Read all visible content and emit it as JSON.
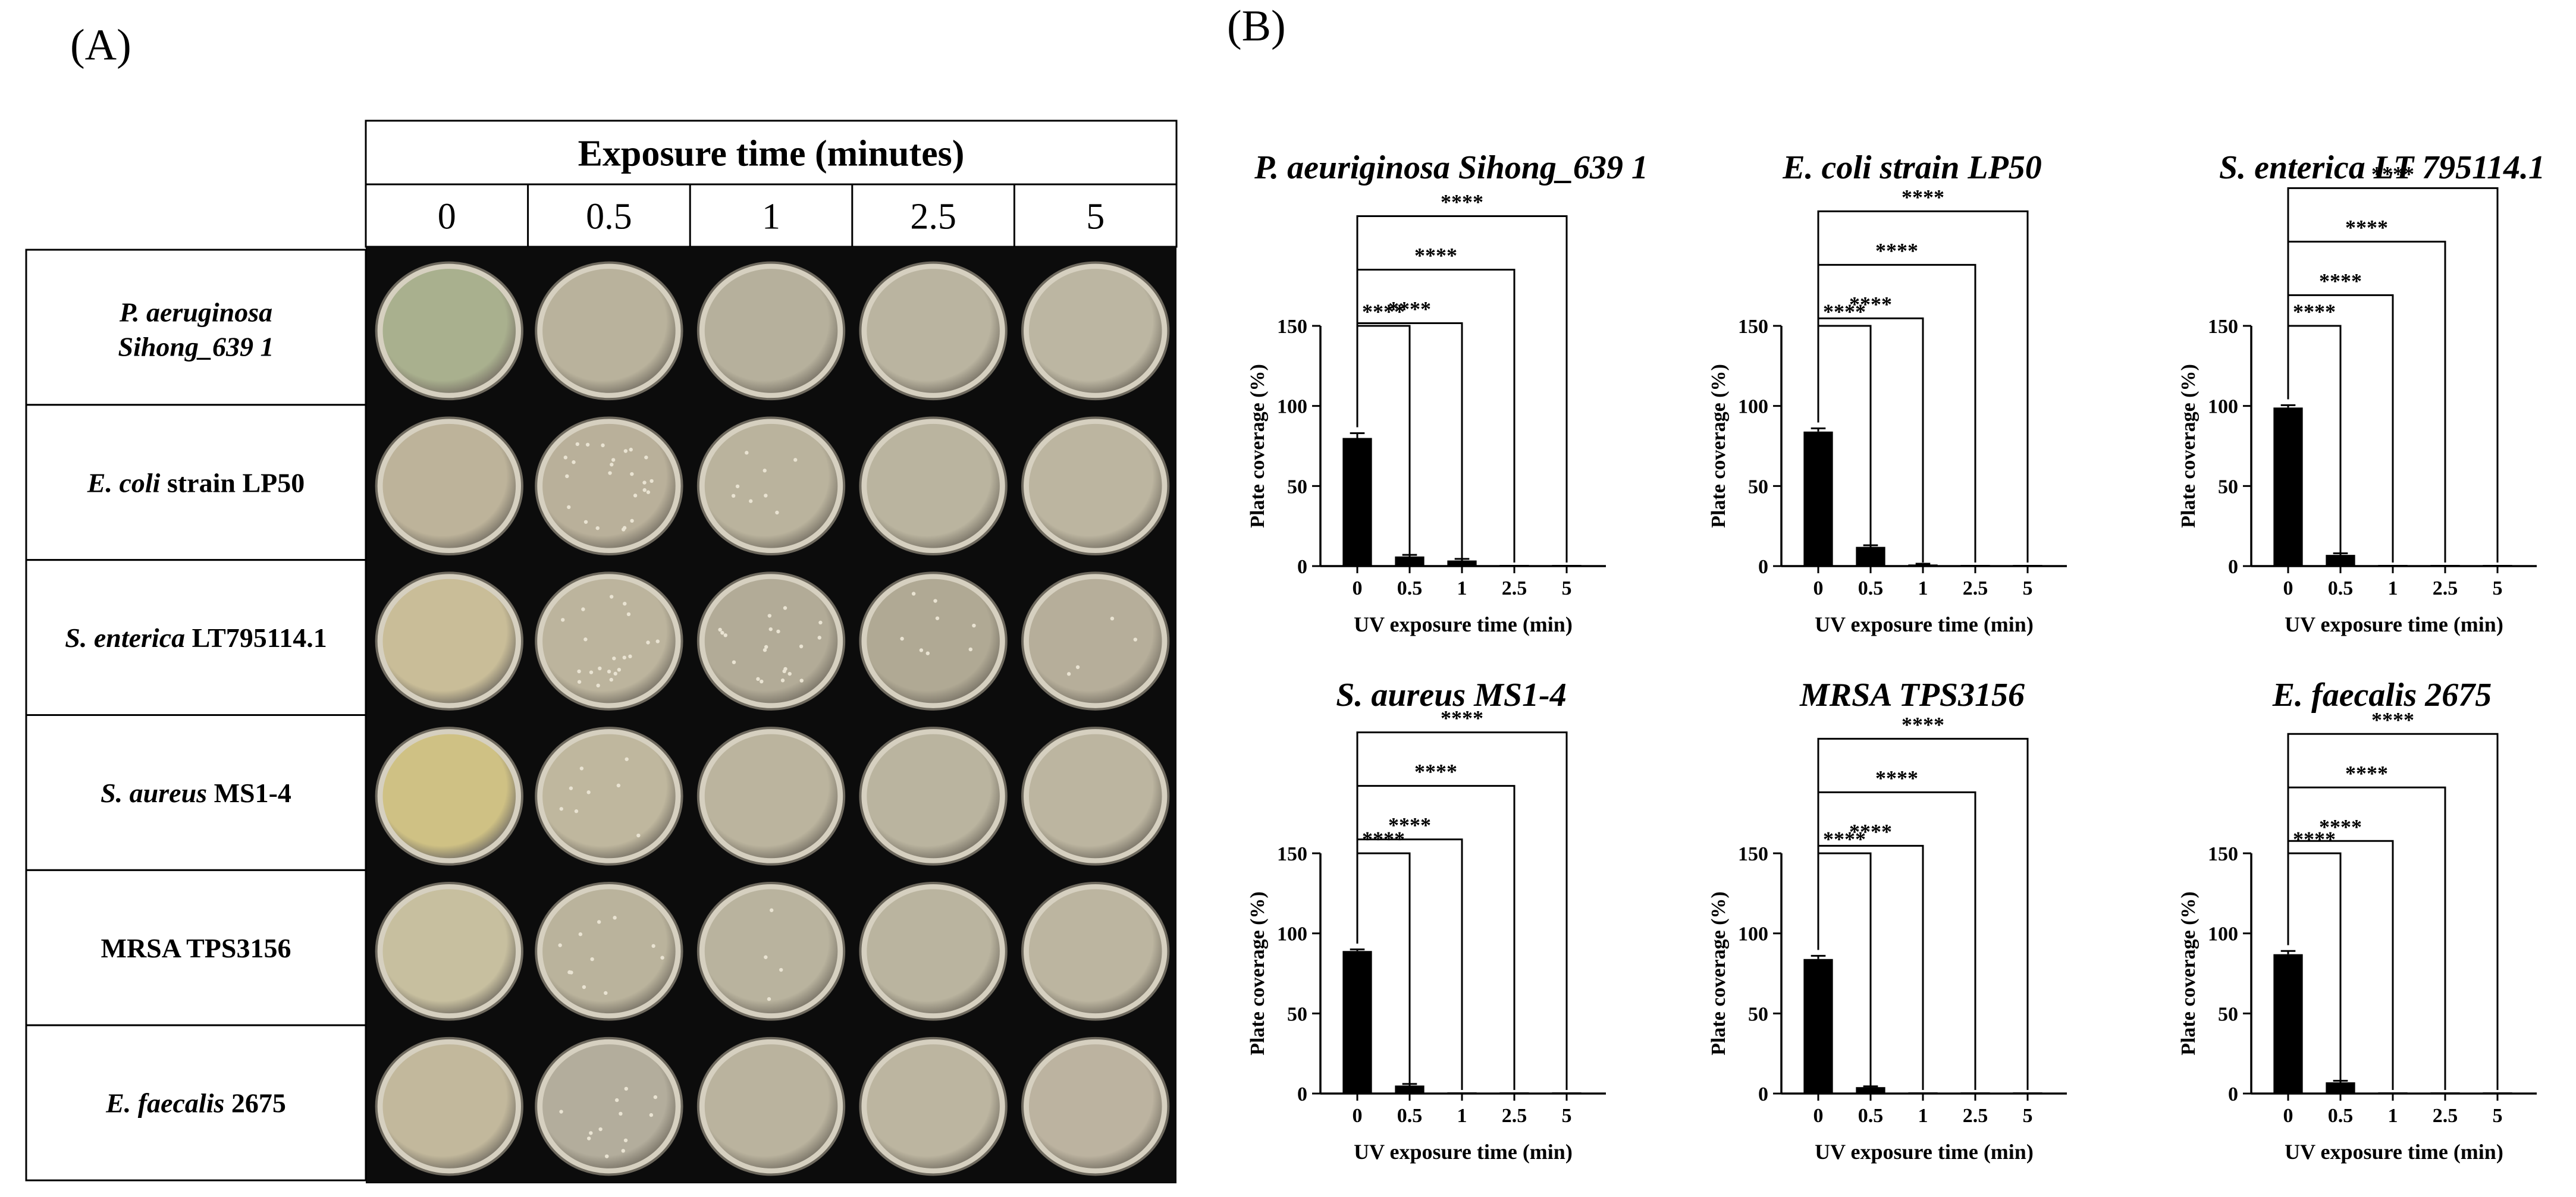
{
  "panels": {
    "a_label": "(A)",
    "b_label": "(B)"
  },
  "panel_a": {
    "header": "Exposure time (minutes)",
    "times": [
      "0",
      "0.5",
      "1",
      "2.5",
      "5"
    ],
    "rows": [
      {
        "name_italic": "P. aeruginosa",
        "name_rest": "",
        "name_line2": "Sihong_639 1",
        "plate_colors": [
          "#a9b08e",
          "#b9b29c",
          "#b6b09c",
          "#bab4a0",
          "#bcb6a2"
        ],
        "colonies": [
          0,
          0,
          0,
          0,
          0
        ]
      },
      {
        "name_italic": "E. coli",
        "name_rest": " strain LP50",
        "name_line2": "",
        "plate_colors": [
          "#bdb39a",
          "#b9b09a",
          "#bab39d",
          "#bab49f",
          "#bcb5a0"
        ],
        "colonies": [
          0,
          0.6,
          0.2,
          0,
          0
        ]
      },
      {
        "name_italic": "S. enterica",
        "name_rest": " LT795114.1",
        "name_line2": "",
        "plate_colors": [
          "#c9bd98",
          "#bcb49d",
          "#b2ab97",
          "#b0a994",
          "#b6ae9a"
        ],
        "colonies": [
          0,
          0.5,
          0.5,
          0.2,
          0.1
        ]
      },
      {
        "name_italic": "S. aureus",
        "name_rest": " MS1-4",
        "name_line2": "",
        "plate_colors": [
          "#cfc184",
          "#bfb79e",
          "#bbb49e",
          "#bab49f",
          "#bcb5a0"
        ],
        "colonies": [
          0,
          0.2,
          0,
          0,
          0
        ]
      },
      {
        "name_italic": "",
        "name_rest": "MRSA TPS3156",
        "name_line2": "",
        "plate_colors": [
          "#c7bf9f",
          "#bab39c",
          "#b9b39e",
          "#bab49f",
          "#bcb5a0"
        ],
        "colonies": [
          0,
          0.3,
          0.1,
          0,
          0
        ]
      },
      {
        "name_italic": "E. faecalis",
        "name_rest": " 2675",
        "name_line2": "",
        "plate_colors": [
          "#c2b89c",
          "#b3ad9c",
          "#bab39e",
          "#bcb5a0",
          "#bcb3a0"
        ],
        "colonies": [
          0,
          0.3,
          0,
          0,
          0
        ]
      }
    ]
  },
  "chart_data": [
    {
      "type": "bar",
      "title": "P. aeuriginosa Sihong_639 1",
      "xlabel": "UV exposure time (min)",
      "ylabel": "Plate coverage (%)",
      "categories": [
        "0",
        "0.5",
        "1",
        "2.5",
        "5"
      ],
      "values": [
        80,
        6,
        3.5,
        0,
        0
      ],
      "errors": [
        3,
        1,
        1,
        0,
        0
      ],
      "ylim": [
        0,
        150
      ],
      "yticks": [
        0,
        50,
        100,
        150
      ],
      "significance": [
        {
          "from": "0",
          "to": "0.5",
          "label": "****"
        },
        {
          "from": "0",
          "to": "1",
          "label": "****"
        },
        {
          "from": "0",
          "to": "2.5",
          "label": "****"
        },
        {
          "from": "0",
          "to": "5",
          "label": "****"
        }
      ]
    },
    {
      "type": "bar",
      "title": "E. coli strain LP50",
      "xlabel": "UV exposure time (min)",
      "ylabel": "Plate coverage (%)",
      "categories": [
        "0",
        "0.5",
        "1",
        "2.5",
        "5"
      ],
      "values": [
        84,
        12,
        1,
        0,
        0
      ],
      "errors": [
        2,
        1,
        0.5,
        0,
        0
      ],
      "ylim": [
        0,
        150
      ],
      "yticks": [
        0,
        50,
        100,
        150
      ],
      "significance": [
        {
          "from": "0",
          "to": "0.5",
          "label": "****"
        },
        {
          "from": "0",
          "to": "1",
          "label": "****"
        },
        {
          "from": "0",
          "to": "2.5",
          "label": "****"
        },
        {
          "from": "0",
          "to": "5",
          "label": "****"
        }
      ]
    },
    {
      "type": "bar",
      "title": "S. enterica LT 795114.1",
      "xlabel": "UV exposure time (min)",
      "ylabel": "Plate coverage (%)",
      "categories": [
        "0",
        "0.5",
        "1",
        "2.5",
        "5"
      ],
      "values": [
        99,
        7,
        0,
        0,
        0
      ],
      "errors": [
        1.5,
        1,
        0,
        0,
        0
      ],
      "ylim": [
        0,
        150
      ],
      "yticks": [
        0,
        50,
        100,
        150
      ],
      "significance": [
        {
          "from": "0",
          "to": "0.5",
          "label": "****"
        },
        {
          "from": "0",
          "to": "1",
          "label": "****"
        },
        {
          "from": "0",
          "to": "2.5",
          "label": "****"
        },
        {
          "from": "0",
          "to": "5",
          "label": "****"
        }
      ]
    },
    {
      "type": "bar",
      "title": "S. aureus MS1-4",
      "xlabel": "UV exposure time (min)",
      "ylabel": "Plate coverage (%)",
      "categories": [
        "0",
        "0.5",
        "1",
        "2.5",
        "5"
      ],
      "values": [
        89,
        5,
        0,
        0,
        0
      ],
      "errors": [
        1,
        1,
        0,
        0,
        0
      ],
      "ylim": [
        0,
        150
      ],
      "yticks": [
        0,
        50,
        100,
        150
      ],
      "significance": [
        {
          "from": "0",
          "to": "0.5",
          "label": "****"
        },
        {
          "from": "0",
          "to": "1",
          "label": "****"
        },
        {
          "from": "0",
          "to": "2.5",
          "label": "****"
        },
        {
          "from": "0",
          "to": "5",
          "label": "****"
        }
      ]
    },
    {
      "type": "bar",
      "title": "MRSA TPS3156",
      "xlabel": "UV exposure time (min)",
      "ylabel": "Plate coverage (%)",
      "categories": [
        "0",
        "0.5",
        "1",
        "2.5",
        "5"
      ],
      "values": [
        84,
        4,
        0,
        0,
        0
      ],
      "errors": [
        2,
        0.5,
        0,
        0,
        0
      ],
      "ylim": [
        0,
        150
      ],
      "yticks": [
        0,
        50,
        100,
        150
      ],
      "significance": [
        {
          "from": "0",
          "to": "0.5",
          "label": "****"
        },
        {
          "from": "0",
          "to": "1",
          "label": "****"
        },
        {
          "from": "0",
          "to": "2.5",
          "label": "****"
        },
        {
          "from": "0",
          "to": "5",
          "label": "****"
        }
      ]
    },
    {
      "type": "bar",
      "title": "E. faecalis 2675",
      "xlabel": "UV exposure time (min)",
      "ylabel": "Plate coverage (%)",
      "categories": [
        "0",
        "0.5",
        "1",
        "2.5",
        "5"
      ],
      "values": [
        87,
        7,
        0,
        0,
        0
      ],
      "errors": [
        2,
        1,
        0,
        0,
        0
      ],
      "ylim": [
        0,
        150
      ],
      "yticks": [
        0,
        50,
        100,
        150
      ],
      "significance": [
        {
          "from": "0",
          "to": "0.5",
          "label": "****"
        },
        {
          "from": "0",
          "to": "1",
          "label": "****"
        },
        {
          "from": "0",
          "to": "2.5",
          "label": "****"
        },
        {
          "from": "0",
          "to": "5",
          "label": "****"
        }
      ]
    }
  ]
}
